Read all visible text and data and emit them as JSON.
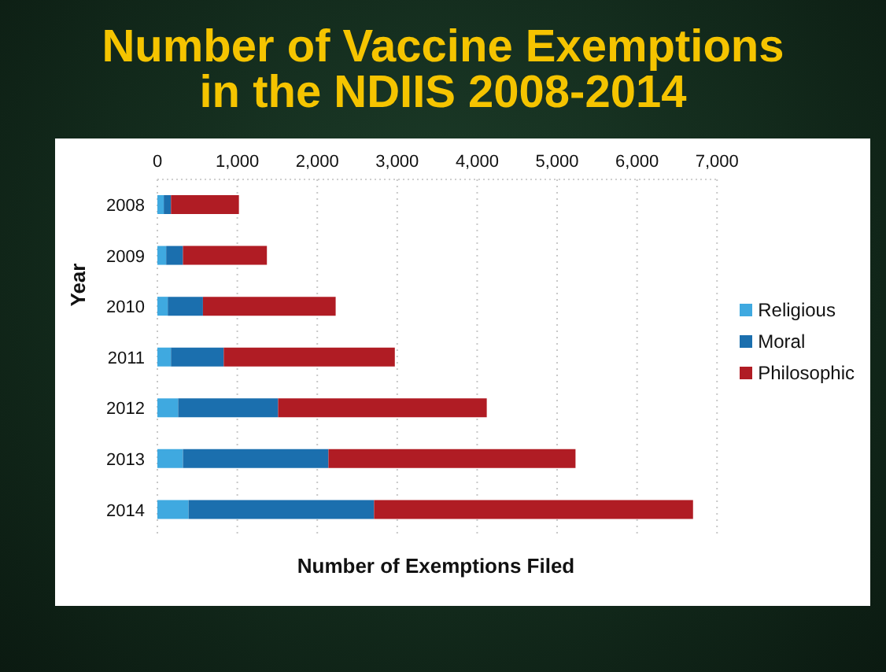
{
  "chart_data": {
    "type": "bar",
    "orientation": "horizontal",
    "stacked": true,
    "title": "Number of Vaccine Exemptions in the NDIIS 2008-2014",
    "xlabel": "Number of Exemptions Filed",
    "ylabel": "Year",
    "categories": [
      "2008",
      "2009",
      "2010",
      "2011",
      "2012",
      "2013",
      "2014"
    ],
    "series": [
      {
        "name": "Religious",
        "color": "#3fa9e0",
        "values": [
          80,
          110,
          130,
          170,
          260,
          320,
          390
        ]
      },
      {
        "name": "Moral",
        "color": "#1b6fae",
        "values": [
          90,
          210,
          440,
          660,
          1250,
          1820,
          2320
        ]
      },
      {
        "name": "Philosophic",
        "color": "#b01c24",
        "values": [
          850,
          1050,
          1660,
          2140,
          2610,
          3090,
          3990
        ]
      }
    ],
    "xlim": [
      0,
      7000
    ],
    "xticks": [
      0,
      {
        "value": 1000,
        "label": "1,000"
      },
      {
        "value": 2000,
        "label": "2,000"
      },
      {
        "value": 3000,
        "label": "3,000"
      },
      {
        "value": 4000,
        "label": "4,000"
      },
      {
        "value": 5000,
        "label": "5,000"
      },
      {
        "value": 6000,
        "label": "6,000"
      },
      {
        "value": 7000,
        "label": "7,000"
      }
    ],
    "grid": "x",
    "legend": "right"
  }
}
